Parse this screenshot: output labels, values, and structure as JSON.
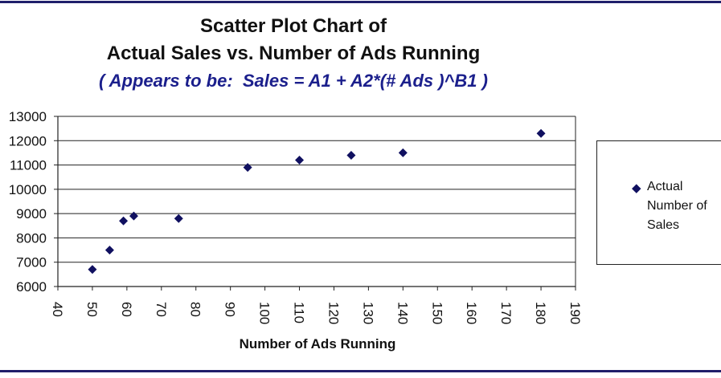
{
  "chart_data": {
    "type": "scatter",
    "title": "Scatter Plot Chart of",
    "title_line2": "Actual Sales vs. Number of Ads Running",
    "subtitle": "( Appears to be:  Sales = A1 + A2*(# Ads )^B1 )",
    "xlabel": "Number of Ads Running",
    "ylabel": "",
    "xlim": [
      40,
      190
    ],
    "ylim": [
      6000,
      13000
    ],
    "x_ticks": [
      "40",
      "50",
      "60",
      "70",
      "80",
      "90",
      "100",
      "110",
      "120",
      "130",
      "140",
      "150",
      "160",
      "170",
      "180",
      "190"
    ],
    "y_ticks": [
      "6000",
      "7000",
      "8000",
      "9000",
      "10000",
      "11000",
      "12000",
      "13000"
    ],
    "grid": "horizontal",
    "legend_position": "right",
    "series": [
      {
        "name": "Actual Number of Sales",
        "marker": "diamond",
        "color": "#101060",
        "points": [
          {
            "x": 50,
            "y": 6700
          },
          {
            "x": 55,
            "y": 7500
          },
          {
            "x": 59,
            "y": 8700
          },
          {
            "x": 62,
            "y": 8900
          },
          {
            "x": 75,
            "y": 8800
          },
          {
            "x": 95,
            "y": 10900
          },
          {
            "x": 110,
            "y": 11200
          },
          {
            "x": 125,
            "y": 11400
          },
          {
            "x": 140,
            "y": 11500
          },
          {
            "x": 180,
            "y": 12300
          }
        ]
      }
    ]
  },
  "legend": {
    "marker_icon": "diamond-icon",
    "line1": "Actual",
    "line2": "Number of",
    "line3": "Sales"
  },
  "colors": {
    "frame": "#1f1f6b",
    "subtitle": "#1b1f8c",
    "marker": "#101060"
  }
}
